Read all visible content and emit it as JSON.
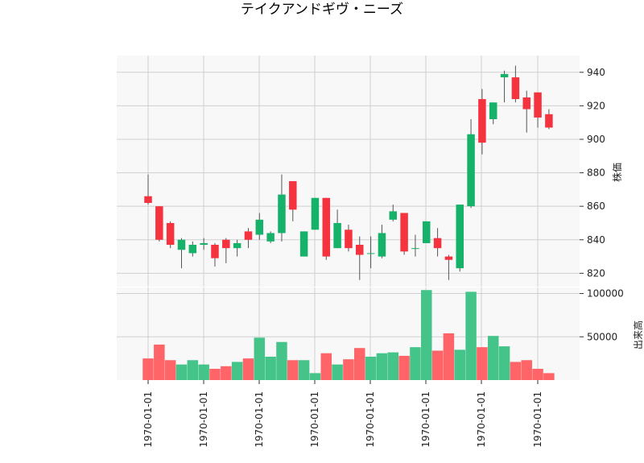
{
  "chart_data": {
    "type": "candlestick",
    "title": "テイクアンドギヴ・ニーズ",
    "x_tick_labels": [
      "1970-01-01",
      "1970-01-01",
      "1970-01-01",
      "1970-01-01",
      "1970-01-01",
      "1970-01-01",
      "1970-01-01",
      "1970-01-01"
    ],
    "price_panel": {
      "ylabel": "株価",
      "ylim": [
        812,
        950
      ],
      "yticks": [
        820,
        840,
        860,
        880,
        900,
        920,
        940
      ],
      "grid": true
    },
    "volume_panel": {
      "ylabel": "出来高",
      "ylim": [
        0,
        107000
      ],
      "yticks": [
        50000,
        100000
      ],
      "grid": true
    },
    "colors": {
      "up": "#17b26a",
      "down": "#f5333f",
      "volume_up": "#45c48a",
      "volume_down": "#ff6468",
      "wick": "#555555",
      "panel_bg": "#f8f8f8",
      "grid": "#cfcfcf"
    },
    "candles": [
      {
        "open": 866,
        "high": 879,
        "low": 861,
        "close": 862,
        "volume": 25000
      },
      {
        "open": 860,
        "high": 860,
        "low": 839,
        "close": 840,
        "volume": 41000
      },
      {
        "open": 850,
        "high": 851,
        "low": 835,
        "close": 837,
        "volume": 23000
      },
      {
        "open": 834,
        "high": 841,
        "low": 823,
        "close": 840,
        "volume": 18000
      },
      {
        "open": 832,
        "high": 839,
        "low": 830,
        "close": 837,
        "volume": 23000
      },
      {
        "open": 837,
        "high": 841,
        "low": 834,
        "close": 838,
        "volume": 18000
      },
      {
        "open": 837,
        "high": 838,
        "low": 824,
        "close": 829,
        "volume": 13000
      },
      {
        "open": 840,
        "high": 841,
        "low": 826,
        "close": 835,
        "volume": 16000
      },
      {
        "open": 835,
        "high": 840,
        "low": 830,
        "close": 838,
        "volume": 21000
      },
      {
        "open": 845,
        "high": 847,
        "low": 835,
        "close": 840,
        "volume": 25000
      },
      {
        "open": 843,
        "high": 856,
        "low": 840,
        "close": 852,
        "volume": 49000
      },
      {
        "open": 839,
        "high": 845,
        "low": 838,
        "close": 844,
        "volume": 27000
      },
      {
        "open": 844,
        "high": 879,
        "low": 839,
        "close": 867,
        "volume": 44000
      },
      {
        "open": 875,
        "high": 875,
        "low": 851,
        "close": 858,
        "volume": 23000
      },
      {
        "open": 830,
        "high": 845,
        "low": 830,
        "close": 845,
        "volume": 23000
      },
      {
        "open": 846,
        "high": 865,
        "low": 846,
        "close": 865,
        "volume": 8000
      },
      {
        "open": 865,
        "high": 865,
        "low": 828,
        "close": 830,
        "volume": 31000
      },
      {
        "open": 835,
        "high": 858,
        "low": 835,
        "close": 850,
        "volume": 18000
      },
      {
        "open": 846,
        "high": 849,
        "low": 833,
        "close": 835,
        "volume": 24000
      },
      {
        "open": 837,
        "high": 842,
        "low": 816,
        "close": 831,
        "volume": 37000
      },
      {
        "open": 832,
        "high": 842,
        "low": 823,
        "close": 832,
        "volume": 27000
      },
      {
        "open": 830,
        "high": 849,
        "low": 829,
        "close": 844,
        "volume": 31000
      },
      {
        "open": 852,
        "high": 861,
        "low": 851,
        "close": 857,
        "volume": 32000
      },
      {
        "open": 856,
        "high": 856,
        "low": 831,
        "close": 833,
        "volume": 28000
      },
      {
        "open": 835,
        "high": 843,
        "low": 830,
        "close": 835,
        "volume": 38000
      },
      {
        "open": 838,
        "high": 851,
        "low": 838,
        "close": 851,
        "volume": 104000
      },
      {
        "open": 841,
        "high": 847,
        "low": 830,
        "close": 835,
        "volume": 34000
      },
      {
        "open": 830,
        "high": 831,
        "low": 816,
        "close": 828,
        "volume": 54000
      },
      {
        "open": 823,
        "high": 861,
        "low": 821,
        "close": 861,
        "volume": 35000
      },
      {
        "open": 860,
        "high": 912,
        "low": 859,
        "close": 903,
        "volume": 102000
      },
      {
        "open": 924,
        "high": 930,
        "low": 891,
        "close": 898,
        "volume": 38000
      },
      {
        "open": 912,
        "high": 922,
        "low": 909,
        "close": 922,
        "volume": 51000
      },
      {
        "open": 937,
        "high": 941,
        "low": 922,
        "close": 939,
        "volume": 39000
      },
      {
        "open": 937,
        "high": 944,
        "low": 922,
        "close": 924,
        "volume": 21000
      },
      {
        "open": 925,
        "high": 929,
        "low": 904,
        "close": 918,
        "volume": 23000
      },
      {
        "open": 928,
        "high": 928,
        "low": 907,
        "close": 913,
        "volume": 13000
      },
      {
        "open": 915,
        "high": 918,
        "low": 906,
        "close": 907,
        "volume": 8000
      }
    ]
  }
}
